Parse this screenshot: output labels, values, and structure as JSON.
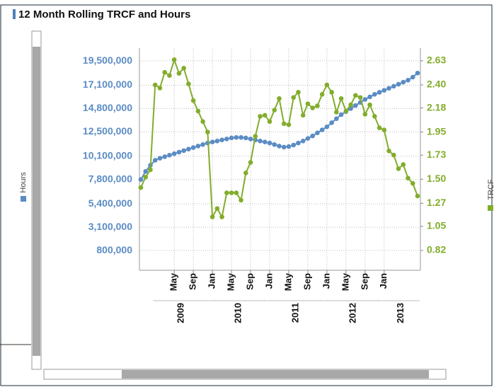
{
  "chart_data": {
    "type": "line",
    "title": "12 Month Rolling TRCF and Hours",
    "y_label": "Hours",
    "y2_label": "TRCF",
    "categories": [
      null,
      null,
      null,
      null,
      null,
      null,
      null,
      "May",
      null,
      null,
      null,
      "Sep",
      null,
      null,
      null,
      "Jan",
      null,
      null,
      null,
      "May",
      null,
      null,
      null,
      "Sep",
      null,
      null,
      null,
      "Jan",
      null,
      null,
      null,
      "May",
      null,
      null,
      null,
      "Sep",
      null,
      null,
      null,
      "Jan",
      null,
      null,
      null,
      "May",
      null,
      null,
      null,
      "Sep",
      null,
      null,
      null,
      "Jan",
      null,
      null,
      null,
      null,
      null,
      null,
      null
    ],
    "groups": [
      "2009",
      "2010",
      "2011",
      "2012",
      "2013"
    ],
    "series": [
      {
        "name": "Hours",
        "color": "#5b8cc4",
        "axis": "y",
        "values": [
          7800000,
          8600000,
          9200000,
          9700000,
          9900000,
          10050000,
          10200000,
          10350000,
          10500000,
          10650000,
          10800000,
          10950000,
          11100000,
          11250000,
          11400000,
          11500000,
          11600000,
          11700000,
          11800000,
          11900000,
          11950000,
          11950000,
          11900000,
          11800000,
          11700000,
          11600000,
          11500000,
          11400000,
          11250000,
          11100000,
          11000000,
          11050000,
          11200000,
          11400000,
          11600000,
          11850000,
          12100000,
          12400000,
          12700000,
          13000000,
          13400000,
          13800000,
          14200000,
          14500000,
          14800000,
          15100000,
          15400000,
          15700000,
          15950000,
          16200000,
          16400000,
          16600000,
          16800000,
          17000000,
          17200000,
          17400000,
          17600000,
          17900000,
          18300000
        ]
      },
      {
        "name": "TRCF",
        "color": "#82ad2c",
        "axis": "y2",
        "values": [
          1.42,
          1.52,
          1.59,
          2.4,
          2.37,
          2.52,
          2.49,
          2.64,
          2.51,
          2.56,
          2.41,
          2.25,
          2.15,
          2.05,
          1.95,
          1.14,
          1.22,
          1.14,
          1.37,
          1.37,
          1.37,
          1.3,
          1.56,
          1.66,
          1.91,
          2.1,
          2.11,
          2.05,
          2.16,
          2.27,
          2.03,
          2.02,
          2.28,
          2.33,
          2.11,
          2.22,
          2.18,
          2.2,
          2.31,
          2.4,
          2.33,
          2.14,
          2.27,
          2.15,
          2.21,
          2.3,
          2.28,
          2.12,
          2.21,
          2.1,
          1.99,
          1.97,
          1.77,
          1.73,
          1.6,
          1.64,
          1.51,
          1.46,
          1.34
        ]
      }
    ],
    "ylim": [
      -1150000,
      20760000
    ],
    "yticks": [
      {
        "value": 800000,
        "label": "800,000"
      },
      {
        "value": 3100000,
        "label": "3,100,000"
      },
      {
        "value": 5400000,
        "label": "5,400,000"
      },
      {
        "value": 7800000,
        "label": "7,800,000"
      },
      {
        "value": 10100000,
        "label": "10,100,000"
      },
      {
        "value": 12500000,
        "label": "12,500,000"
      },
      {
        "value": 14800000,
        "label": "14,800,000"
      },
      {
        "value": 17100000,
        "label": "17,100,000"
      },
      {
        "value": 19500000,
        "label": "19,500,000"
      }
    ],
    "y2lim": [
      0.631,
      2.751
    ],
    "y2ticks": [
      0.82,
      1.05,
      1.27,
      {
        "value": 1.5,
        "label": "1.50"
      },
      1.73,
      1.95,
      2.18,
      {
        "value": 2.4,
        "label": "2.40"
      },
      2.63
    ],
    "grid": true
  }
}
